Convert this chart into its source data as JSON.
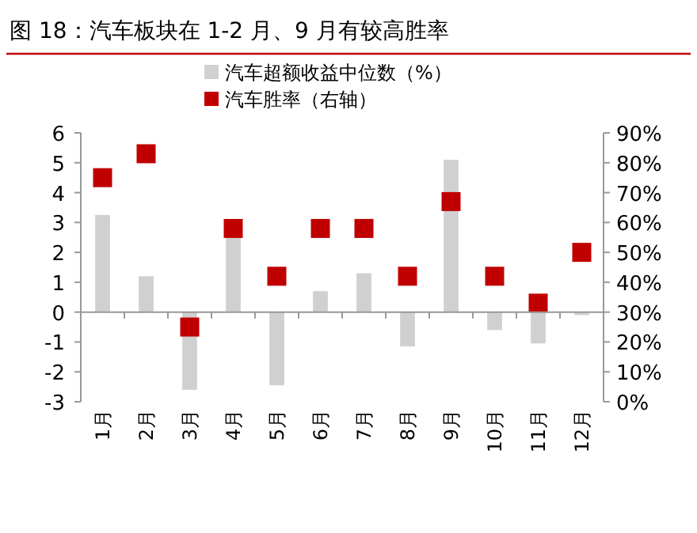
{
  "chart_data": {
    "type": "bar",
    "title": "图 18：汽车板块在 1-2 月、9 月有较高胜率",
    "categories": [
      "1月",
      "2月",
      "3月",
      "4月",
      "5月",
      "6月",
      "7月",
      "8月",
      "9月",
      "10月",
      "11月",
      "12月"
    ],
    "series": [
      {
        "name": "汽车超额收益中位数（%）",
        "color": "#d0d0d0",
        "values": [
          3.25,
          1.2,
          -2.6,
          2.6,
          -2.45,
          0.7,
          1.3,
          -1.15,
          5.1,
          -0.6,
          -1.05,
          -0.1
        ]
      },
      {
        "name": "汽车胜率（右轴）",
        "type": "scatter",
        "axis": "y2",
        "marker": "square",
        "color": "#c00000",
        "x": [
          "1月",
          "2月",
          "3月",
          "4月",
          "5月",
          "6月",
          "7月",
          "8月",
          "9月",
          "10月",
          "11月",
          "12月"
        ],
        "values": [
          75,
          83,
          25,
          58,
          42,
          58,
          58,
          42,
          67,
          42,
          33,
          50
        ]
      }
    ],
    "ylim": [
      -3,
      6
    ],
    "yticks": [
      -3,
      -2,
      -1,
      0,
      1,
      2,
      3,
      4,
      5,
      6
    ],
    "y2lim": [
      0,
      90
    ],
    "y2ticks": [
      {
        "value": 0,
        "label": "0%"
      },
      {
        "value": 10,
        "label": "10%"
      },
      {
        "value": 20,
        "label": "20%"
      },
      {
        "value": 30,
        "label": "30%"
      },
      {
        "value": 40,
        "label": "40%"
      },
      {
        "value": 50,
        "label": "50%"
      },
      {
        "value": 60,
        "label": "60%"
      },
      {
        "value": 70,
        "label": "70%"
      },
      {
        "value": 80,
        "label": "80%"
      },
      {
        "value": 90,
        "label": "90%"
      }
    ],
    "legend": "top"
  }
}
